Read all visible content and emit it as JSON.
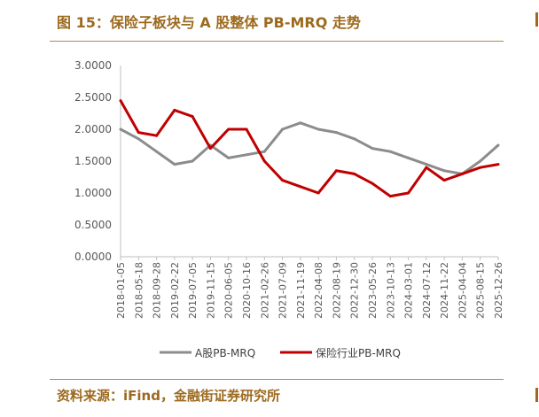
{
  "title": "图 15：保险子板块与 A 股整体 PB-MRQ 走势",
  "source": "资料来源：iFind，金融街证券研究所",
  "colors": {
    "accent": "#9c6a1e",
    "rule": "#b08a4a"
  },
  "chart_data": {
    "type": "line",
    "title": "",
    "xlabel": "",
    "ylabel": "",
    "ylim": [
      0,
      3
    ],
    "yticks": [
      "3.0000",
      "2.5000",
      "2.0000",
      "1.5000",
      "1.0000",
      "0.5000",
      "0.0000"
    ],
    "xticks": [
      "2018-01-05",
      "2018-05-18",
      "2018-09-28",
      "2019-02-22",
      "2019-07-05",
      "2019-11-15",
      "2020-06-05",
      "2020-10-16",
      "2021-02-26",
      "2021-07-09",
      "2021-11-19",
      "2022-04-08",
      "2022-08-19",
      "2022-12-30",
      "2023-05-26",
      "2023-10-13",
      "2024-03-01",
      "2024-07-12",
      "2024-11-22",
      "2025-04-04",
      "2025-08-15",
      "2025-12-26"
    ],
    "grid": false,
    "legend_position": "bottom",
    "series": [
      {
        "name": "A股PB-MRQ",
        "color": "#8c8c8c",
        "values": [
          2.0,
          1.85,
          1.65,
          1.45,
          1.5,
          1.75,
          1.55,
          1.6,
          1.65,
          2.0,
          2.1,
          2.0,
          1.95,
          1.85,
          1.7,
          1.65,
          1.55,
          1.45,
          1.35,
          1.3,
          1.5,
          1.75
        ]
      },
      {
        "name": "保险行业PB-MRQ",
        "color": "#c00000",
        "values": [
          2.45,
          1.95,
          1.9,
          2.3,
          2.2,
          1.7,
          2.0,
          2.0,
          1.5,
          1.2,
          1.1,
          1.0,
          1.35,
          1.3,
          1.15,
          0.95,
          1.0,
          1.4,
          1.2,
          1.3,
          1.4,
          1.45
        ]
      }
    ]
  }
}
